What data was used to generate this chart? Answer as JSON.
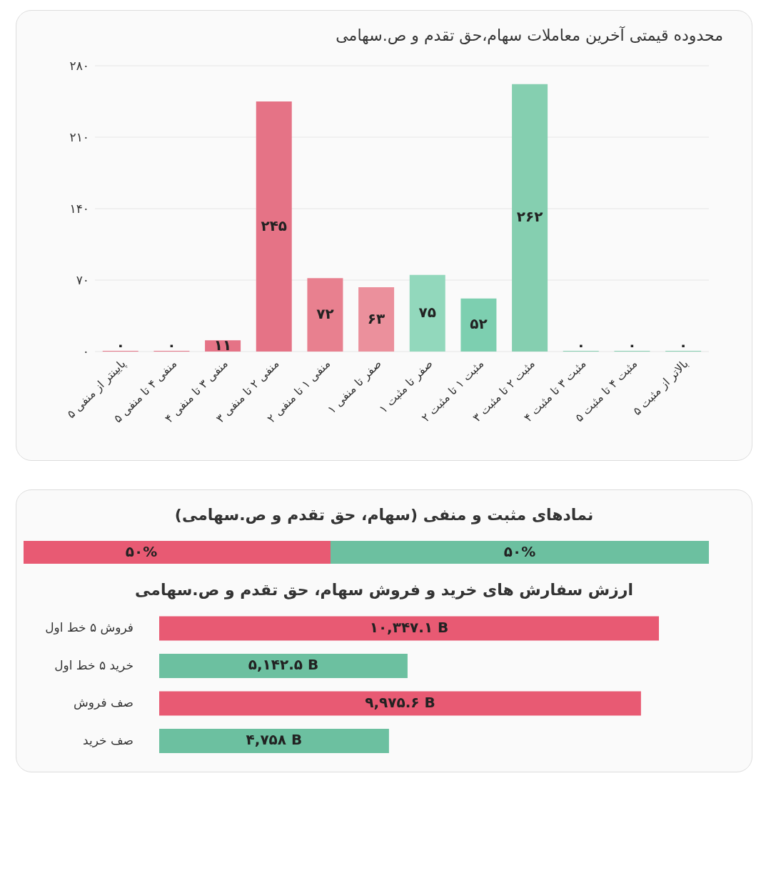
{
  "chart_data": [
    {
      "type": "bar",
      "title": "محدوده قیمتی آخرین معاملات سهام،حق تقدم و ص.سهامی",
      "categories": [
        "پایینتر از منفی ۵",
        "منفی ۴ تا منفی ۵",
        "منفی ۳ تا منفی ۴",
        "منفی ۲ تا منفی ۳",
        "منفی ۱ تا منفی ۲",
        "صفر تا منفی ۱",
        "صفر تا مثبت ۱",
        "مثبت ۱ تا مثبت ۲",
        "مثبت ۲ تا مثبت ۳",
        "مثبت ۳ تا مثبت ۴",
        "مثبت ۴ تا مثبت ۵",
        "بالاتر از مثبت ۵"
      ],
      "values": [
        0,
        0,
        11,
        245,
        72,
        63,
        75,
        52,
        262,
        0,
        0,
        0
      ],
      "colors": [
        "#e57386",
        "#e57386",
        "#e57386",
        "#e57386",
        "#e8808f",
        "#eb909c",
        "#92d8bc",
        "#7dcfb0",
        "#85cfb0",
        "#85cfb0",
        "#85cfb0",
        "#85cfb0"
      ],
      "value_labels": [
        "۰",
        "۰",
        "۱۱",
        "۲۴۵",
        "۷۲",
        "۶۳",
        "۷۵",
        "۵۲",
        "۲۶۲",
        "۰",
        "۰",
        "۰"
      ],
      "ylim": [
        0,
        280
      ],
      "yticks": [
        {
          "value": 0,
          "label": "۰"
        },
        {
          "value": 70,
          "label": "۷۰"
        },
        {
          "value": 140,
          "label": "۱۴۰"
        },
        {
          "value": 210,
          "label": "۲۱۰"
        },
        {
          "value": 280,
          "label": "۲۸۰"
        }
      ],
      "grid": "y"
    },
    {
      "type": "bar",
      "title": "نمادهای مثبت و منفی (سهام، حق تقدم و ص.سهامی)",
      "orientation": "horizontal",
      "stacked": true,
      "categories": [
        null
      ],
      "tick_labels": false,
      "series": [
        {
          "color": "#e85a73",
          "values": [
            50
          ],
          "value_labels": [
            "۵۰%"
          ]
        },
        {
          "color": "#6cc0a0",
          "values": [
            50
          ],
          "value_labels": [
            "۵۰%"
          ]
        }
      ]
    },
    {
      "type": "bar",
      "title": "ارزش سفارش های خرید و فروش سهام، حق تقدم و ص.سهامی",
      "orientation": "horizontal",
      "categories": [
        "فروش ۵ خط اول",
        "خرید ۵ خط اول",
        "صف فروش",
        "صف خرید"
      ],
      "tick_labels": "y",
      "values": [
        10347.1,
        5142.5,
        9975.6,
        4758
      ],
      "colors": [
        "#e85a73",
        "#6cc0a0",
        "#e85a73",
        "#6cc0a0"
      ],
      "value_labels": [
        "۱۰,۳۴۷.۱ B",
        "۵,۱۴۲.۵ B",
        "۹,۹۷۵.۶ B",
        "۴,۷۵۸ B"
      ]
    }
  ]
}
